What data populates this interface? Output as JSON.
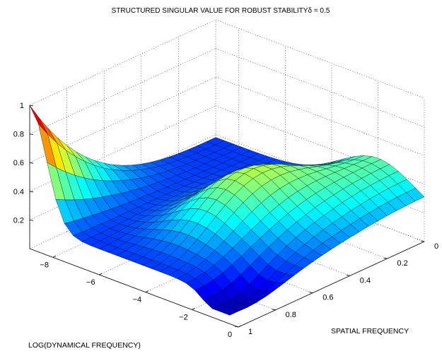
{
  "chart_data": {
    "type": "surface",
    "title": "STRUCTURED SINGULAR VALUE FOR ROBUST STABILITY",
    "title_symbol": "δ = 0.5",
    "xlabel": "LOG(DYNAMICAL FREQUENCY)",
    "ylabel": "SPATIAL FREQUENCY",
    "zlabel": "",
    "xlim": [
      -9,
      0
    ],
    "ylim": [
      0,
      1
    ],
    "zlim": [
      0,
      1
    ],
    "x_ticks": [
      "-8",
      "-6",
      "-4",
      "-2",
      "0"
    ],
    "y_ticks": [
      "0",
      "0.2",
      "0.4",
      "0.6",
      "0.8",
      "1"
    ],
    "z_ticks": [
      "0.2",
      "0.4",
      "0.6",
      "0.8",
      "1"
    ],
    "grid": true,
    "colormap": "jet",
    "surface_x_range": [
      -9,
      0
    ],
    "surface_y_range": [
      0,
      1
    ],
    "peak_value": 1.0,
    "peak_location": {
      "log_dynamical_frequency": -9,
      "spatial_frequency": 1
    },
    "ridge_near_y0": 0.72,
    "valley_value_near_y0_x_mid": 0.15
  }
}
